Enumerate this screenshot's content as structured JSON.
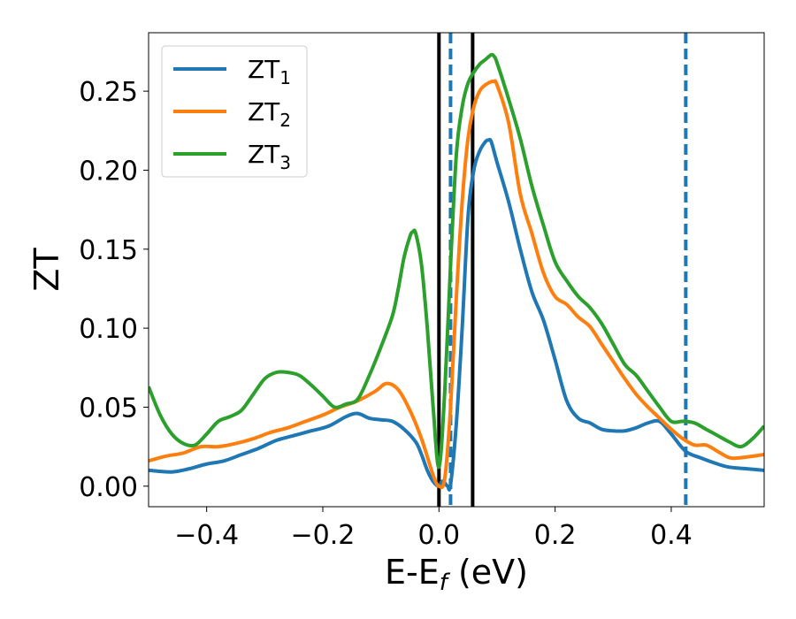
{
  "chart_data": {
    "type": "line",
    "title": "",
    "xlabel": "E-E",
    "xlabel_sub": "f",
    "xlabel_unit": " (eV)",
    "ylabel": "ZT",
    "xlim": [
      -0.5,
      0.56
    ],
    "ylim": [
      -0.013,
      0.287
    ],
    "grid": false,
    "legend_position": "upper-left",
    "x_ticks": [
      {
        "value": -0.4,
        "label": "−0.4"
      },
      {
        "value": -0.2,
        "label": "−0.2"
      },
      {
        "value": 0.0,
        "label": "0.0"
      },
      {
        "value": 0.2,
        "label": "0.2"
      },
      {
        "value": 0.4,
        "label": "0.4"
      }
    ],
    "y_ticks": [
      {
        "value": 0.0,
        "label": "0.00"
      },
      {
        "value": 0.05,
        "label": "0.05"
      },
      {
        "value": 0.1,
        "label": "0.10"
      },
      {
        "value": 0.15,
        "label": "0.15"
      },
      {
        "value": 0.2,
        "label": "0.20"
      },
      {
        "value": 0.25,
        "label": "0.25"
      }
    ],
    "vlines": [
      {
        "x": 0.0,
        "color": "#000000",
        "style": "solid"
      },
      {
        "x": 0.058,
        "color": "#000000",
        "style": "solid"
      },
      {
        "x": 0.02,
        "color": "#1f77b4",
        "style": "dashed"
      },
      {
        "x": 0.425,
        "color": "#1f77b4",
        "style": "dashed"
      }
    ],
    "series": [
      {
        "name": "ZT",
        "sub": "1",
        "color": "#1f77b4",
        "x": [
          -0.5,
          -0.46,
          -0.43,
          -0.4,
          -0.37,
          -0.34,
          -0.31,
          -0.28,
          -0.25,
          -0.22,
          -0.19,
          -0.16,
          -0.14,
          -0.12,
          -0.1,
          -0.08,
          -0.06,
          -0.04,
          -0.03,
          -0.02,
          -0.01,
          0.0,
          0.005,
          0.01,
          0.015,
          0.02,
          0.03,
          0.04,
          0.05,
          0.06,
          0.07,
          0.08,
          0.085,
          0.09,
          0.1,
          0.12,
          0.14,
          0.16,
          0.18,
          0.2,
          0.22,
          0.24,
          0.26,
          0.28,
          0.3,
          0.32,
          0.34,
          0.36,
          0.38,
          0.4,
          0.425,
          0.45,
          0.48,
          0.5,
          0.53,
          0.56
        ],
        "y": [
          0.01,
          0.009,
          0.011,
          0.014,
          0.016,
          0.02,
          0.024,
          0.029,
          0.032,
          0.035,
          0.038,
          0.044,
          0.046,
          0.043,
          0.042,
          0.041,
          0.036,
          0.028,
          0.02,
          0.01,
          0.003,
          0.0,
          0.003,
          0.002,
          0.0,
          0.001,
          0.04,
          0.1,
          0.17,
          0.2,
          0.212,
          0.218,
          0.219,
          0.218,
          0.205,
          0.18,
          0.15,
          0.123,
          0.105,
          0.08,
          0.054,
          0.043,
          0.04,
          0.036,
          0.035,
          0.035,
          0.037,
          0.04,
          0.041,
          0.033,
          0.022,
          0.018,
          0.014,
          0.012,
          0.011,
          0.01
        ]
      },
      {
        "name": "ZT",
        "sub": "2",
        "color": "#ff7f0e",
        "x": [
          -0.5,
          -0.47,
          -0.44,
          -0.41,
          -0.38,
          -0.35,
          -0.32,
          -0.29,
          -0.26,
          -0.23,
          -0.2,
          -0.17,
          -0.14,
          -0.11,
          -0.09,
          -0.07,
          -0.05,
          -0.03,
          -0.01,
          0.0,
          0.01,
          0.02,
          0.03,
          0.04,
          0.05,
          0.06,
          0.07,
          0.08,
          0.09,
          0.095,
          0.1,
          0.12,
          0.14,
          0.16,
          0.18,
          0.2,
          0.22,
          0.24,
          0.26,
          0.28,
          0.3,
          0.32,
          0.34,
          0.36,
          0.38,
          0.4,
          0.42,
          0.44,
          0.46,
          0.48,
          0.5,
          0.52,
          0.56
        ],
        "y": [
          0.016,
          0.019,
          0.021,
          0.025,
          0.025,
          0.027,
          0.03,
          0.034,
          0.037,
          0.041,
          0.045,
          0.05,
          0.054,
          0.06,
          0.065,
          0.061,
          0.048,
          0.03,
          0.007,
          0.0,
          0.005,
          0.05,
          0.12,
          0.18,
          0.22,
          0.24,
          0.25,
          0.254,
          0.256,
          0.256,
          0.254,
          0.23,
          0.185,
          0.16,
          0.135,
          0.12,
          0.115,
          0.107,
          0.101,
          0.09,
          0.079,
          0.068,
          0.058,
          0.05,
          0.043,
          0.036,
          0.03,
          0.026,
          0.026,
          0.022,
          0.018,
          0.018,
          0.02
        ]
      },
      {
        "name": "ZT",
        "sub": "3",
        "color": "#2ca02c",
        "x": [
          -0.5,
          -0.48,
          -0.46,
          -0.44,
          -0.42,
          -0.4,
          -0.38,
          -0.36,
          -0.34,
          -0.32,
          -0.3,
          -0.28,
          -0.26,
          -0.24,
          -0.22,
          -0.2,
          -0.18,
          -0.16,
          -0.14,
          -0.12,
          -0.1,
          -0.08,
          -0.07,
          -0.06,
          -0.05,
          -0.045,
          -0.04,
          -0.03,
          -0.02,
          -0.01,
          0.0,
          0.01,
          0.02,
          0.03,
          0.04,
          0.05,
          0.06,
          0.07,
          0.08,
          0.09,
          0.095,
          0.1,
          0.12,
          0.14,
          0.16,
          0.18,
          0.2,
          0.22,
          0.24,
          0.26,
          0.28,
          0.3,
          0.32,
          0.34,
          0.36,
          0.38,
          0.4,
          0.42,
          0.44,
          0.46,
          0.48,
          0.5,
          0.52,
          0.54,
          0.56
        ],
        "y": [
          0.063,
          0.045,
          0.033,
          0.027,
          0.026,
          0.033,
          0.041,
          0.044,
          0.048,
          0.058,
          0.068,
          0.072,
          0.072,
          0.07,
          0.064,
          0.057,
          0.05,
          0.052,
          0.055,
          0.07,
          0.088,
          0.108,
          0.125,
          0.145,
          0.158,
          0.161,
          0.16,
          0.14,
          0.1,
          0.05,
          0.012,
          0.06,
          0.14,
          0.21,
          0.24,
          0.255,
          0.262,
          0.267,
          0.27,
          0.273,
          0.272,
          0.268,
          0.245,
          0.22,
          0.19,
          0.165,
          0.142,
          0.13,
          0.12,
          0.113,
          0.103,
          0.09,
          0.077,
          0.07,
          0.06,
          0.05,
          0.041,
          0.041,
          0.04,
          0.036,
          0.032,
          0.028,
          0.025,
          0.03,
          0.038
        ]
      }
    ]
  }
}
